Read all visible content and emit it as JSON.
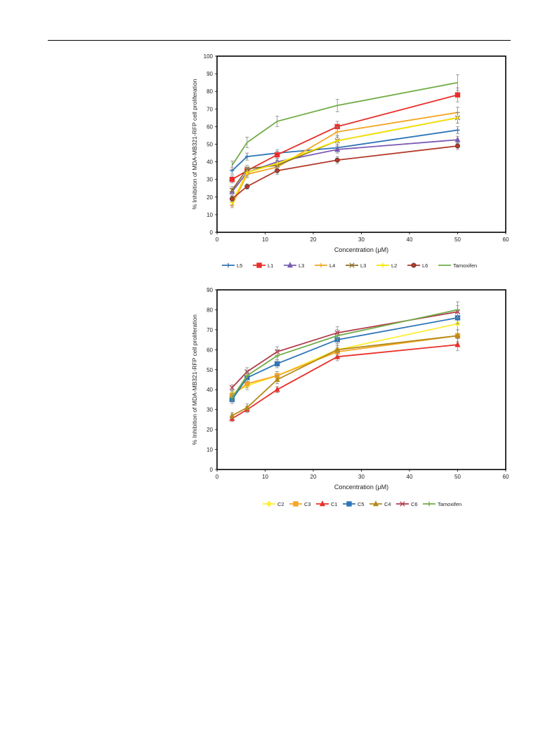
{
  "chart_data": [
    {
      "type": "line",
      "xlabel": "Concentration (μM)",
      "ylabel": "% Inhibition of MDA-MB321-RFP cell proliferation",
      "xlim": [
        0,
        60
      ],
      "ylim": [
        0,
        100
      ],
      "xticks": [
        0,
        10,
        20,
        30,
        40,
        50,
        60
      ],
      "yticks": [
        0,
        10,
        20,
        30,
        40,
        50,
        60,
        70,
        80,
        90,
        100
      ],
      "x": [
        3.125,
        6.25,
        12.5,
        25,
        50
      ],
      "legend_position": "bottom",
      "grid": false,
      "series": [
        {
          "name": "L5",
          "color": "#2e75b6",
          "marker": "plus",
          "values": [
            35,
            43,
            45,
            48,
            58
          ],
          "errors": [
            2,
            2,
            2,
            2,
            2
          ]
        },
        {
          "name": "L1",
          "color": "#e8302b",
          "marker": "square",
          "values": [
            30,
            35,
            44,
            60,
            78
          ],
          "errors": [
            2,
            2,
            2,
            3,
            4
          ]
        },
        {
          "name": "L3",
          "color": "#7b5bb5",
          "marker": "triangle",
          "values": [
            23,
            34,
            40,
            47,
            52.5
          ],
          "errors": [
            2,
            2,
            2,
            2,
            2
          ]
        },
        {
          "name": "L4",
          "color": "#f5a623",
          "marker": "plus",
          "values": [
            15.5,
            33,
            37,
            57,
            68
          ],
          "errors": [
            1.5,
            2,
            2,
            3,
            3
          ]
        },
        {
          "name": "L3",
          "color": "#8c6d2c",
          "marker": "x",
          "values": [
            24,
            36,
            38,
            52,
            65
          ],
          "errors": [
            2,
            2,
            2,
            3,
            3
          ]
        },
        {
          "name": "L2",
          "color": "#f7e600",
          "marker": "plus",
          "values": [
            17,
            34,
            39,
            52,
            65
          ],
          "errors": [
            2,
            2,
            2,
            3,
            3
          ]
        },
        {
          "name": "L6",
          "color": "#b23a2a",
          "marker": "circle",
          "values": [
            19,
            26,
            35,
            41,
            49
          ],
          "errors": [
            1.5,
            1.5,
            2,
            2,
            2
          ]
        },
        {
          "name": "Tamoxifen",
          "color": "#70ad47",
          "marker": "none",
          "values": [
            38,
            51,
            63,
            72,
            85
          ],
          "errors": [
            2.5,
            3,
            3,
            3.5,
            4.5
          ]
        }
      ]
    },
    {
      "type": "line",
      "xlabel": "Concentration (μM)",
      "ylabel": "% Inhibition of MDA-MB321-RFP cell proliferation",
      "xlim": [
        0,
        60
      ],
      "ylim": [
        0,
        90
      ],
      "xticks": [
        0,
        10,
        20,
        30,
        40,
        50,
        60
      ],
      "yticks": [
        0,
        10,
        20,
        30,
        40,
        50,
        60,
        70,
        80,
        90
      ],
      "x": [
        3.125,
        6.25,
        12.5,
        25,
        50
      ],
      "legend_position": "bottom",
      "grid": false,
      "series": [
        {
          "name": "C2",
          "color": "#ffee33",
          "marker": "diamond",
          "values": [
            38,
            42,
            47,
            60,
            73
          ],
          "errors": [
            2,
            2,
            2,
            2,
            3
          ]
        },
        {
          "name": "C3",
          "color": "#f5a623",
          "marker": "square",
          "values": [
            37,
            43,
            47,
            59,
            67
          ],
          "errors": [
            2,
            2,
            2,
            2,
            3
          ]
        },
        {
          "name": "C1",
          "color": "#e8302b",
          "marker": "triangle",
          "values": [
            25.5,
            30,
            40,
            56.5,
            62.5
          ],
          "errors": [
            1.5,
            1.5,
            1.5,
            2,
            3
          ]
        },
        {
          "name": "C5",
          "color": "#2e75b6",
          "marker": "square",
          "values": [
            35,
            46,
            53,
            65,
            76
          ],
          "errors": [
            2,
            2,
            2,
            3,
            3
          ]
        },
        {
          "name": "C4",
          "color": "#b58b1b",
          "marker": "triangle",
          "values": [
            27,
            31,
            45,
            60,
            67
          ],
          "errors": [
            1.5,
            2,
            2,
            3,
            3
          ]
        },
        {
          "name": "C6",
          "color": "#b03a4a",
          "marker": "x",
          "values": [
            41,
            49,
            59,
            68.5,
            79
          ],
          "errors": [
            1.5,
            2,
            2.5,
            3,
            3
          ]
        },
        {
          "name": "Tamoxifen",
          "color": "#70ad47",
          "marker": "plus",
          "values": [
            36,
            47,
            57,
            67,
            80
          ],
          "errors": [
            2,
            2,
            3,
            3,
            4
          ]
        }
      ]
    }
  ]
}
